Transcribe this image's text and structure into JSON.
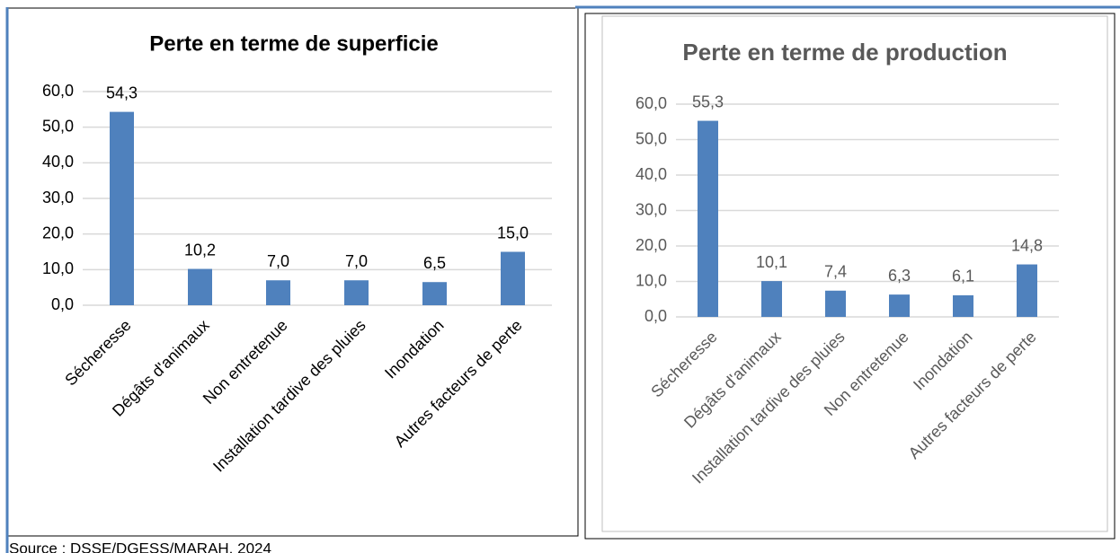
{
  "chart_data": [
    {
      "type": "bar",
      "title": "Perte en terme de superficie",
      "categories": [
        "Sécheresse",
        "Dégâts d'animaux",
        "Non entretenue",
        "Installation tardive des pluies",
        "Inondation",
        "Autres facteurs de perte"
      ],
      "values": [
        54.3,
        10.2,
        7.0,
        7.0,
        6.5,
        15.0
      ],
      "value_labels": [
        "54,3",
        "10,2",
        "7,0",
        "7,0",
        "6,5",
        "15,0"
      ],
      "color": "#4f81bd",
      "ylim": [
        0,
        60
      ],
      "yticks": [
        {
          "value": 0,
          "label": "0,0"
        },
        {
          "value": 10,
          "label": "10,0"
        },
        {
          "value": 20,
          "label": "20,0"
        },
        {
          "value": 30,
          "label": "30,0"
        },
        {
          "value": 40,
          "label": "40,0"
        },
        {
          "value": 50,
          "label": "50,0"
        },
        {
          "value": 60,
          "label": "60,0"
        }
      ],
      "grid": true
    },
    {
      "type": "bar",
      "title": "Perte en terme de production",
      "categories": [
        "Sécheresse",
        "Dégâts d'animaux",
        "Installation tardive des pluies",
        "Non entretenue",
        "Inondation",
        "Autres facteurs de perte"
      ],
      "values": [
        55.3,
        10.1,
        7.4,
        6.3,
        6.1,
        14.8
      ],
      "value_labels": [
        "55,3",
        "10,1",
        "7,4",
        "6,3",
        "6,1",
        "14,8"
      ],
      "color": "#4f81bd",
      "ylim": [
        0,
        60
      ],
      "yticks": [
        {
          "value": 0,
          "label": "0,0"
        },
        {
          "value": 10,
          "label": "10,0"
        },
        {
          "value": 20,
          "label": "20,0"
        },
        {
          "value": 30,
          "label": "30,0"
        },
        {
          "value": 40,
          "label": "40,0"
        },
        {
          "value": 50,
          "label": "50,0"
        },
        {
          "value": 60,
          "label": "60,0"
        }
      ],
      "grid": true
    }
  ],
  "source": "Source : DSSE/DGESS/MARAH, 2024"
}
